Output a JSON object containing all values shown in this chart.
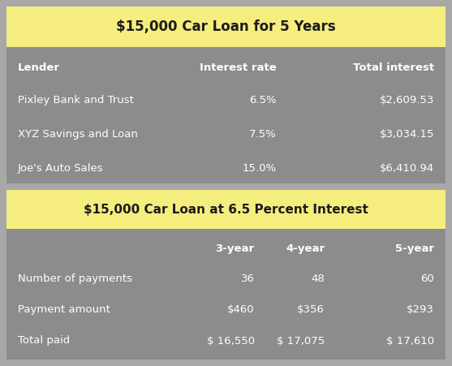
{
  "title1": "$15,000 Car Loan for 5 Years",
  "title2": "$15,000 Car Loan at 6.5 Percent Interest",
  "table1_headers": [
    "Lender",
    "Interest rate",
    "Total interest"
  ],
  "table1_rows": [
    [
      "Pixley Bank and Trust",
      "6.5%",
      "$2,609.53"
    ],
    [
      "XYZ Savings and Loan",
      "7.5%",
      "$3,034.15"
    ],
    [
      "Joe's Auto Sales",
      "15.0%",
      "$6,410.94"
    ]
  ],
  "table2_headers": [
    "",
    "3-year",
    "4-year",
    "5-year"
  ],
  "table2_rows": [
    [
      "Number of payments",
      "36",
      "48",
      "60"
    ],
    [
      "Payment amount",
      "$460",
      "$356",
      "$293"
    ],
    [
      "Total paid",
      "$ 16,550",
      "$ 17,075",
      "$ 17,610"
    ]
  ],
  "bg_color": "#8C8C8C",
  "header_bg_color": "#F5EE7E",
  "text_color_white": "#FFFFFF",
  "text_color_dark": "#1C1C1C",
  "outer_bg": "#A8A8A8",
  "inner_border": "#BBBBBB"
}
